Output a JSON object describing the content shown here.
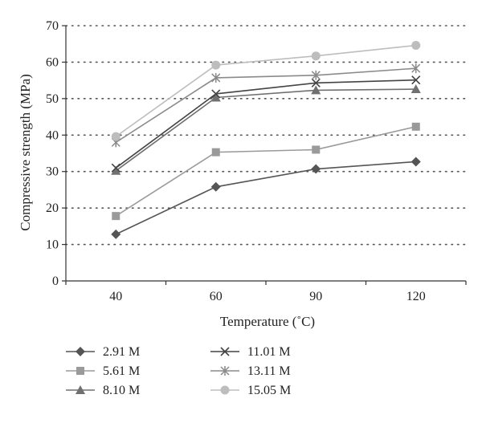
{
  "chart_data": {
    "type": "line",
    "title": "",
    "xlabel": "Temperature (˚C)",
    "ylabel": "Compressive strength (MPa)",
    "categories": [
      "40",
      "60",
      "90",
      "120"
    ],
    "ylim": [
      0,
      70
    ],
    "yticks": [
      0,
      10,
      20,
      30,
      40,
      50,
      60,
      70
    ],
    "grid": "horizontal-dotted",
    "legend_position": "bottom",
    "series": [
      {
        "name": "2.91 M",
        "marker": "diamond",
        "color": "#555555",
        "values": [
          12.8,
          25.8,
          30.7,
          32.7
        ]
      },
      {
        "name": "5.61 M",
        "marker": "square",
        "color": "#9a9a9a",
        "values": [
          17.8,
          35.3,
          36.0,
          42.3
        ]
      },
      {
        "name": "8.10 M",
        "marker": "triangle",
        "color": "#707070",
        "values": [
          30.2,
          50.3,
          52.3,
          52.6
        ]
      },
      {
        "name": "11.01 M",
        "marker": "x",
        "color": "#444444",
        "values": [
          31.0,
          51.3,
          54.3,
          55.1
        ]
      },
      {
        "name": "13.11 M",
        "marker": "star",
        "color": "#8a8a8a",
        "values": [
          38.0,
          55.7,
          56.4,
          58.3
        ]
      },
      {
        "name": "15.05 M",
        "marker": "circle",
        "color": "#bdbdbd",
        "values": [
          39.6,
          59.2,
          61.7,
          64.6
        ]
      }
    ]
  }
}
